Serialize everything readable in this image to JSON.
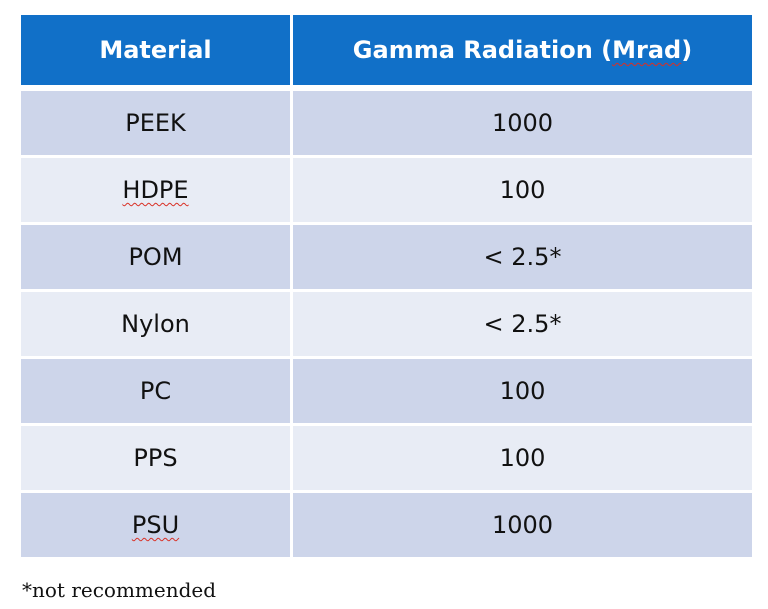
{
  "table": {
    "headers": {
      "material": "Material",
      "radiation_prefix": "Gamma Radiation (",
      "radiation_unit": "Mrad",
      "radiation_suffix": ")"
    },
    "rows": [
      {
        "material": "PEEK",
        "value": "1000",
        "spell_flag": false
      },
      {
        "material": "HDPE",
        "value": "100",
        "spell_flag": true
      },
      {
        "material": "POM",
        "value": "< 2.5*",
        "spell_flag": false
      },
      {
        "material": "Nylon",
        "value": "< 2.5*",
        "spell_flag": false
      },
      {
        "material": "PC",
        "value": "100",
        "spell_flag": false
      },
      {
        "material": "PPS",
        "value": "100",
        "spell_flag": false
      },
      {
        "material": "PSU",
        "value": "1000",
        "spell_flag": true
      }
    ]
  },
  "footnote": "*not recommended",
  "colors": {
    "header_bg": "#1170c8",
    "row_dark": "#cdd5ea",
    "row_light": "#e8ecf5",
    "spellcheck_underline": "#d93025"
  }
}
